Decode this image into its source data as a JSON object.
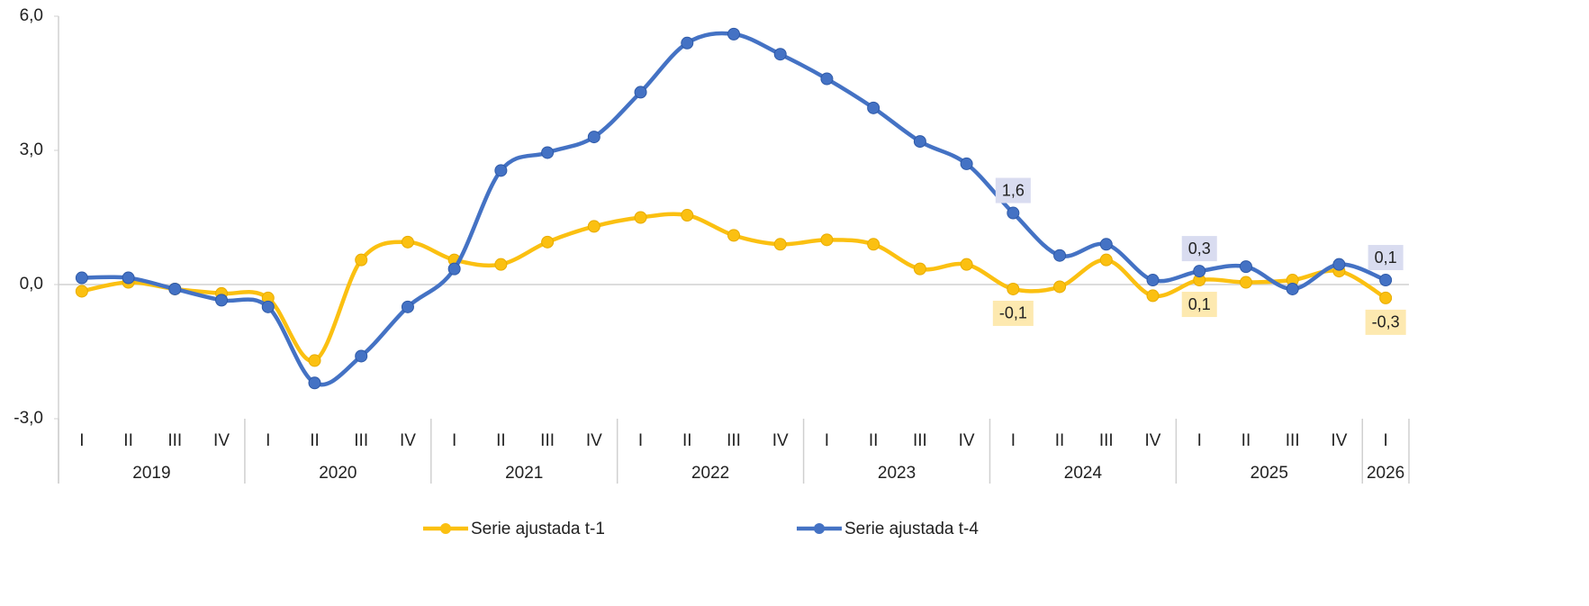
{
  "chart_data": {
    "type": "line",
    "categories": [
      "I",
      "II",
      "III",
      "IV",
      "I",
      "II",
      "III",
      "IV",
      "I",
      "II",
      "III",
      "IV",
      "I",
      "II",
      "III",
      "IV",
      "I",
      "II",
      "III",
      "IV",
      "I",
      "II",
      "III",
      "IV",
      "I",
      "II",
      "III",
      "IV",
      "I"
    ],
    "years": [
      "2019",
      "2020",
      "2021",
      "2022",
      "2023",
      "2024",
      "2025",
      "2026"
    ],
    "series": [
      {
        "name": "Serie ajustada t-1",
        "color": "#fbc011",
        "values": [
          -0.15,
          0.05,
          -0.1,
          -0.2,
          -0.3,
          -1.7,
          0.55,
          0.95,
          0.55,
          0.45,
          0.95,
          1.3,
          1.5,
          1.55,
          1.1,
          0.9,
          1.0,
          0.9,
          0.35,
          0.45,
          -0.1,
          -0.05,
          0.55,
          -0.25,
          0.1,
          0.05,
          0.1,
          0.3,
          -0.3
        ],
        "value_labels": [
          null,
          null,
          null,
          null,
          null,
          null,
          null,
          null,
          null,
          null,
          null,
          null,
          null,
          null,
          null,
          null,
          null,
          null,
          null,
          null,
          "-0,1",
          null,
          null,
          null,
          "0,1",
          null,
          null,
          null,
          "-0,3"
        ]
      },
      {
        "name": "Serie ajustada t-4",
        "color": "#4472c4",
        "values": [
          0.15,
          0.15,
          -0.1,
          -0.35,
          -0.5,
          -2.2,
          -1.6,
          -0.5,
          0.35,
          2.55,
          2.95,
          3.3,
          4.3,
          5.4,
          5.6,
          5.15,
          4.6,
          3.95,
          3.2,
          2.7,
          1.6,
          0.65,
          0.9,
          0.1,
          0.3,
          0.4,
          -0.1,
          0.45,
          0.1
        ],
        "value_labels": [
          null,
          null,
          null,
          null,
          null,
          null,
          null,
          null,
          null,
          null,
          null,
          null,
          null,
          null,
          null,
          null,
          null,
          null,
          null,
          null,
          "1,6",
          null,
          null,
          null,
          "0,3",
          null,
          null,
          null,
          "0,1"
        ]
      }
    ],
    "ylim": [
      -3,
      6
    ],
    "yticks": [
      {
        "value": -3,
        "label": "-3,0"
      },
      {
        "value": 0,
        "label": "0,0"
      },
      {
        "value": 3,
        "label": "3,0"
      },
      {
        "value": 6,
        "label": "6,0"
      }
    ],
    "grid": false,
    "legend": "bottom"
  }
}
